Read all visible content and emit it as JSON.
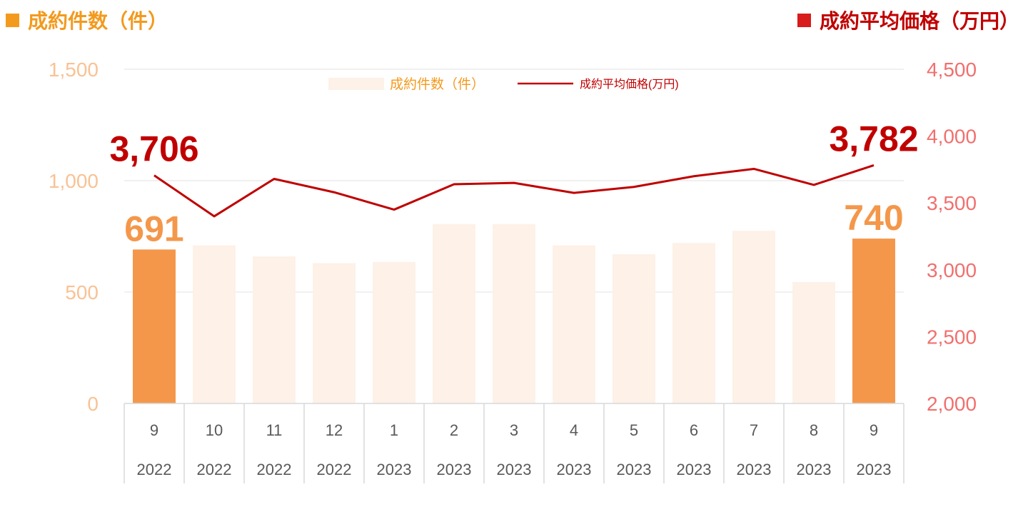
{
  "header": {
    "left_title": "成約件数（件）",
    "right_title": "成約平均価格（万円）",
    "left_icon": "orange-square-icon",
    "right_icon": "red-square-icon"
  },
  "colors": {
    "highlight_bar": "#f4974a",
    "faded_bar": "#fdf1e8",
    "line": "#c00000",
    "left_axis": "#f9c294",
    "right_axis": "#f0706e"
  },
  "chart_data": {
    "type": "bar+line",
    "legend": {
      "position": "top-center",
      "bar_label": "成約件数（件）",
      "line_label": "成約平均価格(万円)"
    },
    "categories": [
      {
        "month": "9",
        "year": "2022"
      },
      {
        "month": "10",
        "year": "2022"
      },
      {
        "month": "11",
        "year": "2022"
      },
      {
        "month": "12",
        "year": "2022"
      },
      {
        "month": "1",
        "year": "2023"
      },
      {
        "month": "2",
        "year": "2023"
      },
      {
        "month": "3",
        "year": "2023"
      },
      {
        "month": "4",
        "year": "2023"
      },
      {
        "month": "5",
        "year": "2023"
      },
      {
        "month": "6",
        "year": "2023"
      },
      {
        "month": "7",
        "year": "2023"
      },
      {
        "month": "8",
        "year": "2023"
      },
      {
        "month": "9",
        "year": "2023"
      }
    ],
    "series": [
      {
        "name": "成約件数（件）",
        "type": "bar",
        "axis": "left",
        "values": [
          691,
          710,
          660,
          630,
          635,
          805,
          805,
          710,
          670,
          720,
          775,
          545,
          740
        ],
        "highlighted": [
          true,
          false,
          false,
          false,
          false,
          false,
          false,
          false,
          false,
          false,
          false,
          false,
          true
        ]
      },
      {
        "name": "成約平均価格(万円)",
        "type": "line",
        "axis": "right",
        "values": [
          3706,
          3400,
          3680,
          3580,
          3450,
          3640,
          3650,
          3575,
          3620,
          3700,
          3755,
          3635,
          3782
        ]
      }
    ],
    "left_axis": {
      "ylim": [
        0,
        1500
      ],
      "ticks": [
        0,
        500,
        1000,
        1500
      ],
      "tick_labels": [
        "0",
        "500",
        "1,000",
        "1,500"
      ]
    },
    "right_axis": {
      "ylim": [
        2000,
        4500
      ],
      "ticks": [
        2000,
        2500,
        3000,
        3500,
        4000,
        4500
      ],
      "tick_labels": [
        "2,000",
        "2,500",
        "3,000",
        "3,500",
        "4,000",
        "4,500"
      ]
    },
    "data_labels": [
      {
        "series": "bar",
        "index": 0,
        "text": "691"
      },
      {
        "series": "bar",
        "index": 12,
        "text": "740"
      },
      {
        "series": "line",
        "index": 0,
        "text": "3,706"
      },
      {
        "series": "line",
        "index": 12,
        "text": "3,782"
      }
    ],
    "gridlines": true
  }
}
